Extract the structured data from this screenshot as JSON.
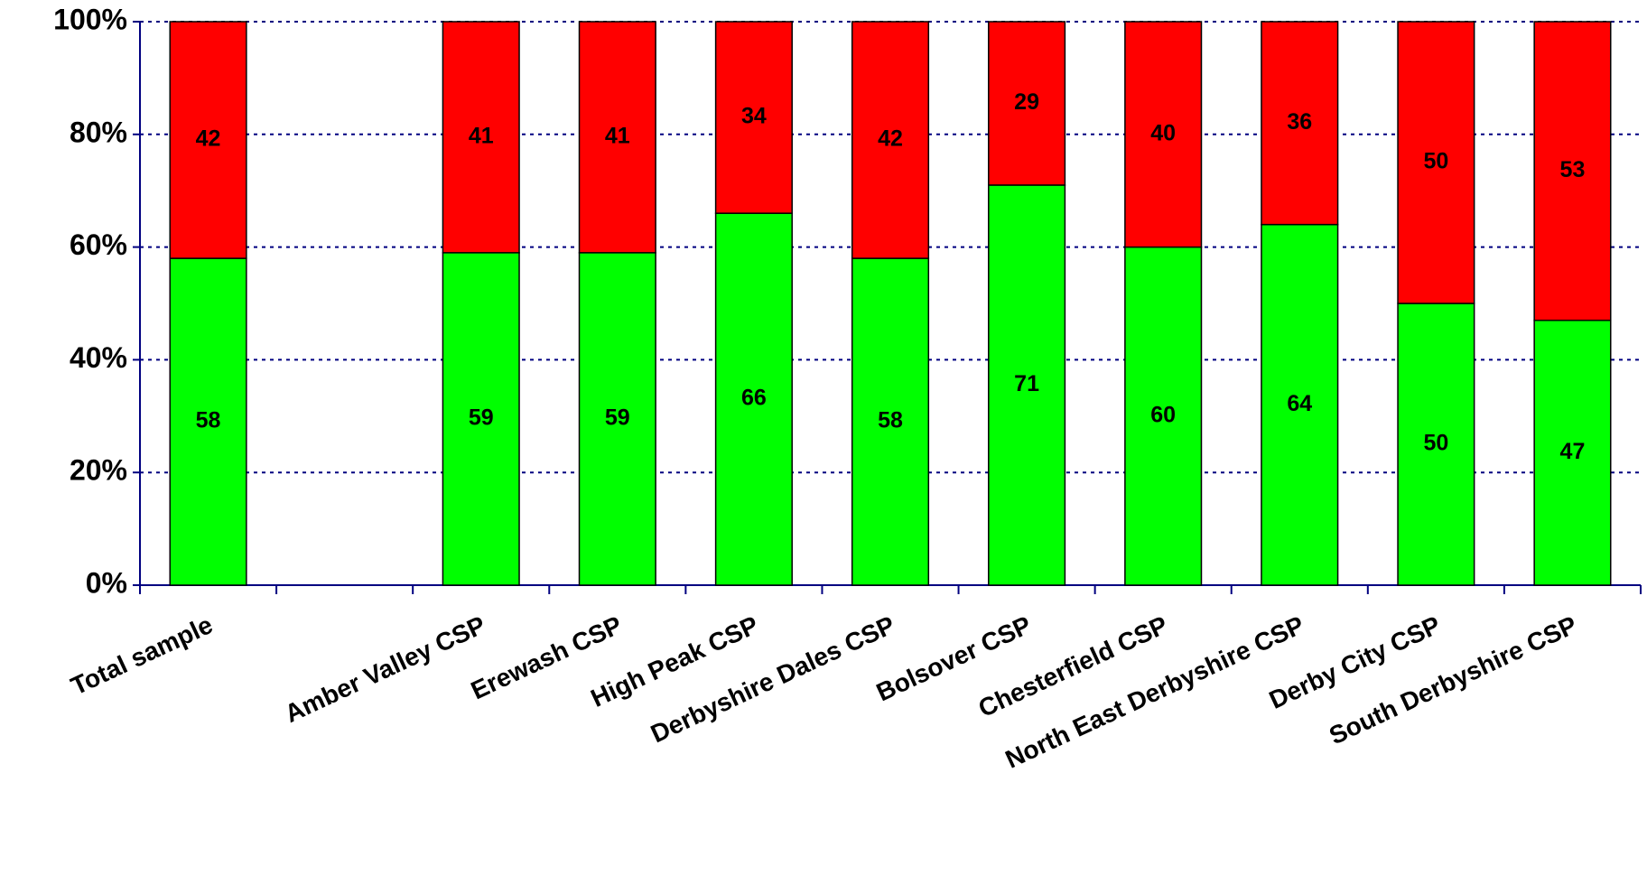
{
  "chart_data": {
    "type": "stacked_bar",
    "categories": [
      "Total sample",
      null,
      "Amber Valley CSP",
      "Erewash CSP",
      "High Peak CSP",
      "Derbyshire Dales CSP",
      "Bolsover CSP",
      "Chesterfield CSP",
      "North East Derbyshire CSP",
      "Derby City CSP",
      "South Derbyshire CSP"
    ],
    "series": [
      {
        "color": "#00ff00",
        "values": [
          58,
          null,
          59,
          59,
          66,
          58,
          71,
          60,
          64,
          50,
          47
        ]
      },
      {
        "color": "#ff0000",
        "values": [
          42,
          null,
          41,
          41,
          34,
          42,
          29,
          40,
          36,
          50,
          53
        ]
      }
    ],
    "ylim": [
      0,
      100
    ],
    "yticks": [
      {
        "value": 0,
        "label": "0%"
      },
      {
        "value": 20,
        "label": "20%"
      },
      {
        "value": 40,
        "label": "40%"
      },
      {
        "value": 60,
        "label": "60%"
      },
      {
        "value": 80,
        "label": "80%"
      },
      {
        "value": 100,
        "label": "100%"
      }
    ],
    "grid": true
  }
}
